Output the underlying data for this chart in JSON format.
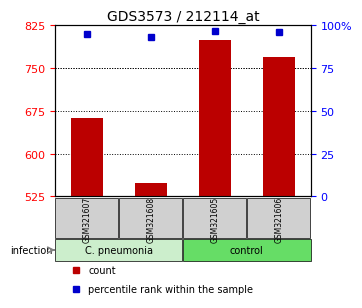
{
  "title": "GDS3573 / 212114_at",
  "categories": [
    "GSM321607",
    "GSM321608",
    "GSM321605",
    "GSM321606"
  ],
  "bar_values": [
    663,
    548,
    800,
    770
  ],
  "percentile_values": [
    95,
    93,
    97,
    96
  ],
  "bar_color": "#bb0000",
  "marker_color": "#0000cc",
  "ylim_left": [
    525,
    825
  ],
  "ylim_right": [
    0,
    100
  ],
  "yticks_left": [
    525,
    600,
    675,
    750,
    825
  ],
  "yticks_right": [
    0,
    25,
    50,
    75,
    100
  ],
  "ytick_labels_right": [
    "0",
    "25",
    "50",
    "75",
    "100%"
  ],
  "grid_values": [
    600,
    675,
    750
  ],
  "group1_label": "C. pneumonia",
  "group2_label": "control",
  "group1_color": "#cceecc",
  "group2_color": "#66dd66",
  "infection_label": "infection",
  "legend_count_label": "count",
  "legend_pct_label": "percentile rank within the sample",
  "background_color": "#ffffff",
  "plot_bg_color": "#ffffff"
}
